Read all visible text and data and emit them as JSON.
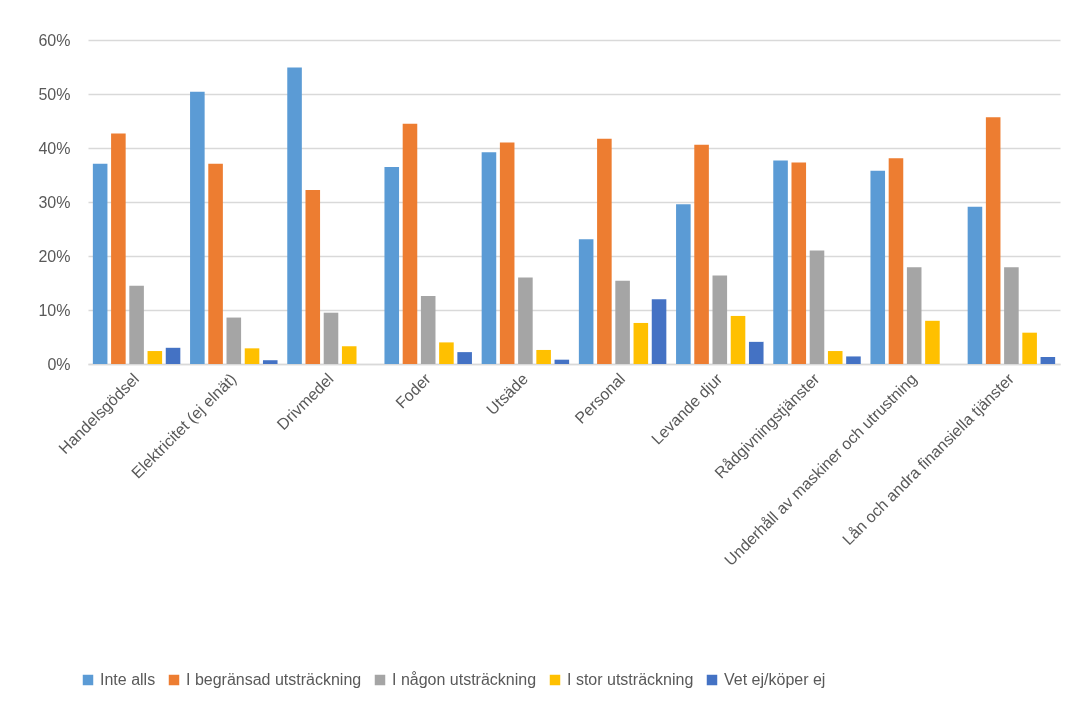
{
  "chart_data": {
    "type": "bar",
    "categories": [
      "Handelsgödsel",
      "Elektricitet (ej elnät)",
      "Drivmedel",
      "Foder",
      "Utsäde",
      "Personal",
      "Levande djur",
      "Rådgivningstjänster",
      "Underhåll av maskiner och utrustning",
      "Lån och andra finansiella tjänster"
    ],
    "series": [
      {
        "name": "Inte alls",
        "color": "#5b9bd5",
        "values": [
          37.1,
          50.4,
          54.9,
          36.5,
          39.2,
          23.1,
          29.6,
          37.7,
          35.8,
          29.1
        ]
      },
      {
        "name": "I begränsad utsträckning",
        "color": "#ed7d31",
        "values": [
          42.7,
          37.1,
          32.2,
          44.5,
          41.0,
          41.7,
          40.6,
          37.3,
          38.1,
          45.7
        ]
      },
      {
        "name": "I någon utsträckning",
        "color": "#a5a5a5",
        "values": [
          14.5,
          8.6,
          9.5,
          12.6,
          16.0,
          15.4,
          16.4,
          21.0,
          17.9,
          17.9
        ]
      },
      {
        "name": "I stor utsträckning",
        "color": "#ffc000",
        "values": [
          2.4,
          2.9,
          3.3,
          4.0,
          2.6,
          7.6,
          8.9,
          2.4,
          8.0,
          5.8
        ]
      },
      {
        "name": "Vet ej/köper ej",
        "color": "#4472c4",
        "values": [
          3.0,
          0.7,
          null,
          2.2,
          0.8,
          12.0,
          4.1,
          1.4,
          null,
          1.3
        ]
      }
    ],
    "ylim": [
      0,
      60
    ],
    "yticks": [
      {
        "value": 0,
        "label": "0%"
      },
      {
        "value": 10,
        "label": "10%"
      },
      {
        "value": 20,
        "label": "20%"
      },
      {
        "value": 30,
        "label": "30%"
      },
      {
        "value": 40,
        "label": "40%"
      },
      {
        "value": 50,
        "label": "50%"
      },
      {
        "value": 60,
        "label": "60%"
      }
    ],
    "grid": "y",
    "legend": "bottom"
  }
}
